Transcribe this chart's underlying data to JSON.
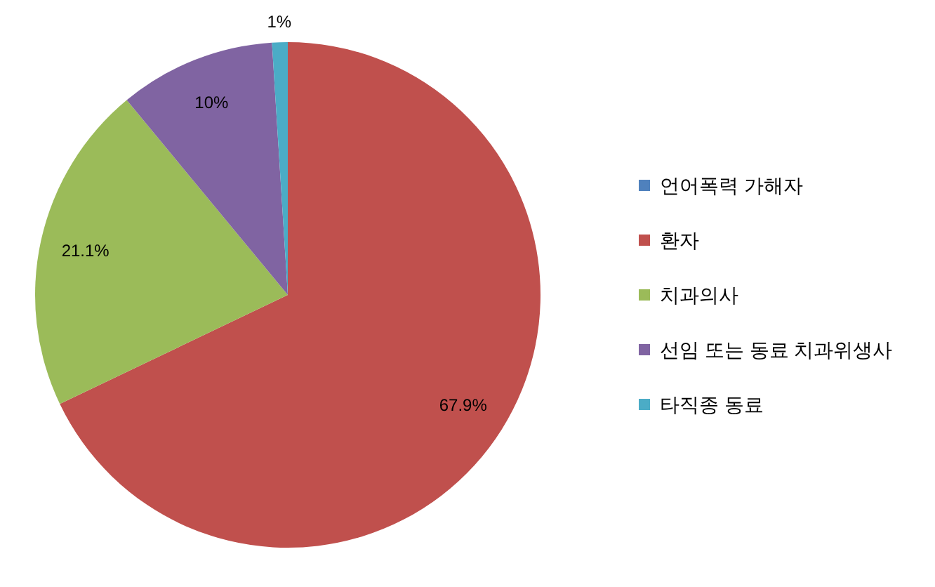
{
  "chart_data": {
    "type": "pie",
    "categories": [
      "언어폭력 가해자",
      "환자",
      "치과의사",
      "선임 또는 동료 치과위생사",
      "타직종 동료"
    ],
    "values": [
      0,
      67.9,
      21.1,
      10,
      1
    ],
    "value_labels": [
      null,
      "67.9%",
      "21.1%",
      "10%",
      "1%"
    ],
    "colors": [
      "#4f81bd",
      "#c0504d",
      "#9bbb59",
      "#8064a2",
      "#4bacc6"
    ],
    "legend": "right"
  }
}
